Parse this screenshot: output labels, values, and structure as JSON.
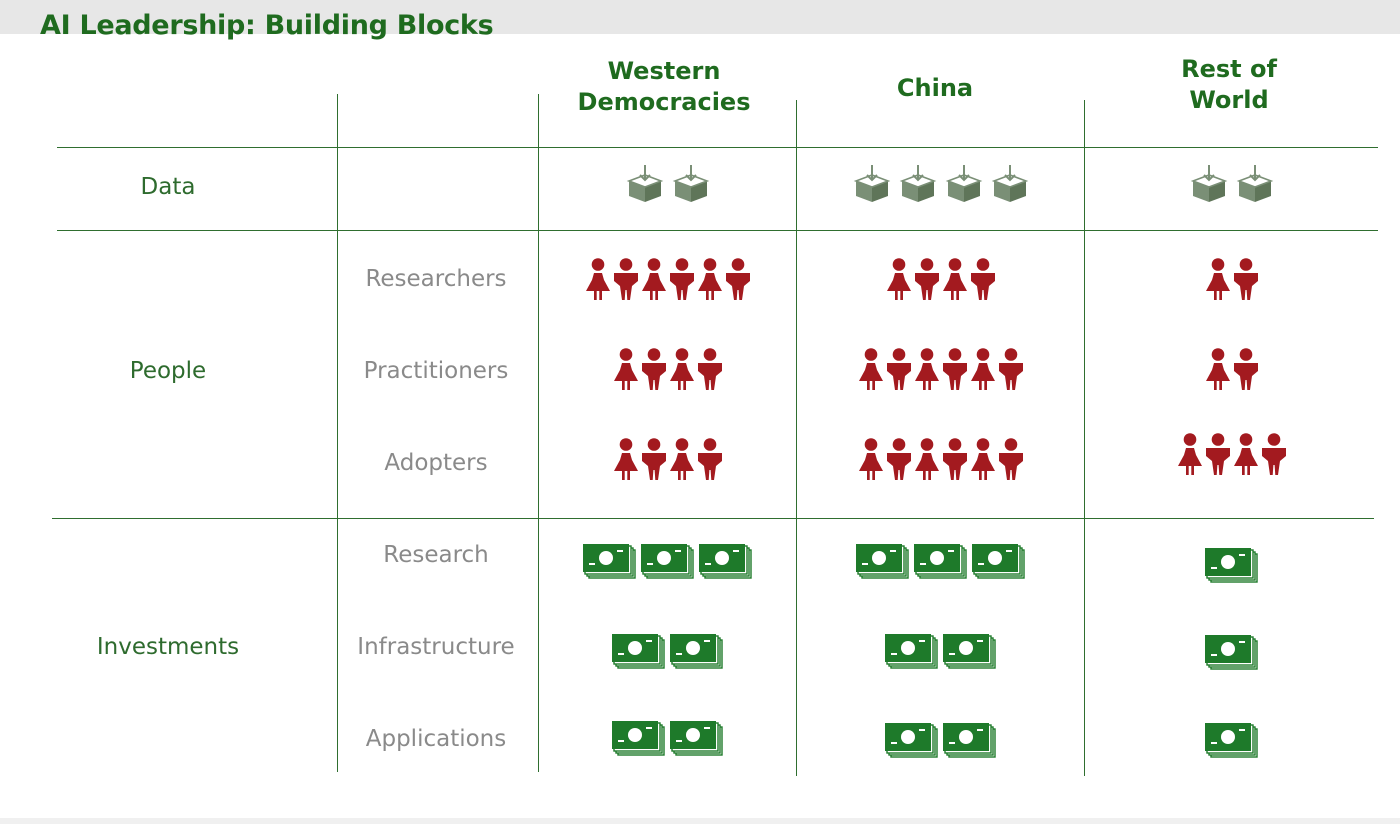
{
  "title": "AI Leadership: Building Blocks",
  "columns": [
    {
      "label_lines": [
        "Western",
        "Democracies"
      ]
    },
    {
      "label_lines": [
        "China"
      ]
    },
    {
      "label_lines": [
        "Rest of",
        "World"
      ]
    }
  ],
  "categories": {
    "data": "Data",
    "people": "People",
    "investments": "Investments"
  },
  "subrows": {
    "researchers": "Researchers",
    "practitioners": "Practitioners",
    "adopters": "Adopters",
    "research": "Research",
    "infrastructure": "Infrastructure",
    "applications": "Applications"
  },
  "icon_counts": {
    "data": [
      2,
      4,
      2
    ],
    "researchers": [
      6,
      4,
      2
    ],
    "practitioners": [
      4,
      6,
      2
    ],
    "adopters": [
      4,
      6,
      4
    ],
    "research": [
      3,
      3,
      1
    ],
    "infrastructure": [
      2,
      2,
      1
    ],
    "applications": [
      2,
      2,
      1
    ]
  },
  "icon_types": {
    "data": "data-box-icon",
    "people": "person-icon",
    "investments": "money-stack-icon"
  },
  "colors": {
    "title": "#1f6b1f",
    "header": "#1f6b1f",
    "category": "#2e6b2e",
    "subrow": "#8a8a8a",
    "person": "#a31a1f",
    "money": "#1e7a2a",
    "data_box": "#7a8f76",
    "lines": "#2f6e2f"
  }
}
